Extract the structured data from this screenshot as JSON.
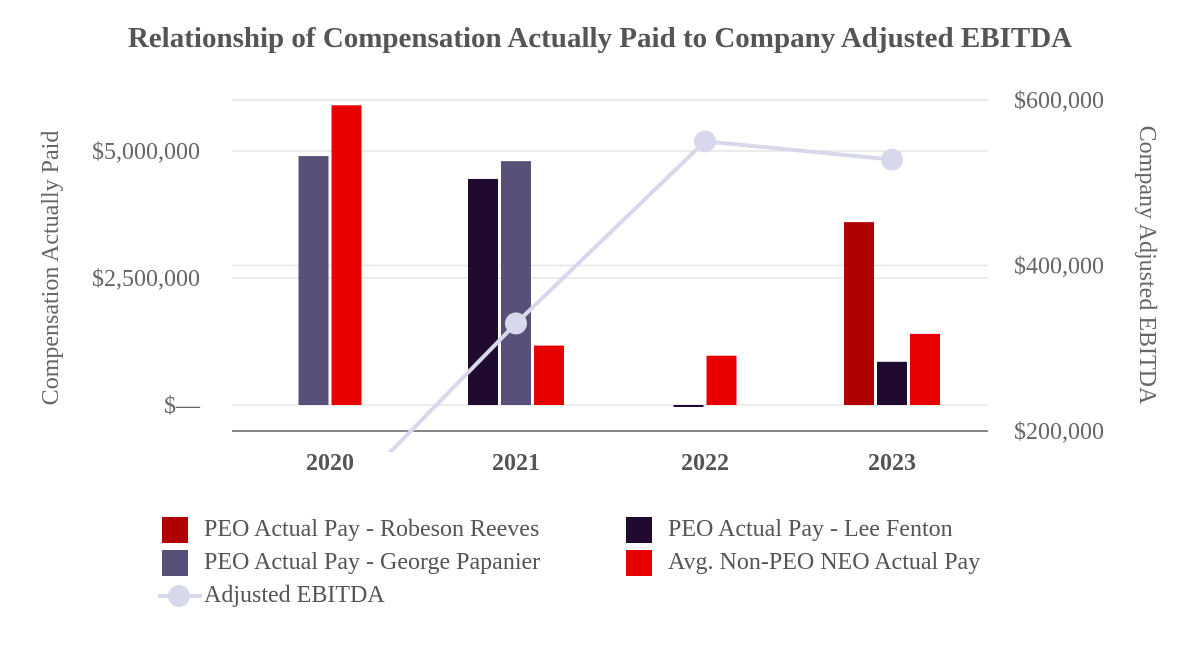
{
  "chart_data": {
    "type": "bar",
    "title": "Relationship of Compensation Actually Paid to Company Adjusted EBITDA",
    "categories": [
      "2020",
      "2021",
      "2022",
      "2023"
    ],
    "ylabel": "Compensation Actually Paid",
    "y2label": "Company Adjusted EBITDA",
    "ylim": [
      -500000,
      6000000
    ],
    "y2lim": [
      200000,
      600000
    ],
    "yticks": [
      0,
      2500000,
      5000000
    ],
    "yticklabels": [
      "$—",
      "$2,500,000",
      "$5,000,000"
    ],
    "y2ticks": [
      200000,
      400000,
      600000
    ],
    "y2ticklabels": [
      "$200,000",
      "$400,000",
      "$600,000"
    ],
    "grid": true,
    "legend_position": "bottom",
    "series": [
      {
        "name": "PEO Actual Pay - Robeson Reeves",
        "type": "bar",
        "axis": "left",
        "color": "#b00000",
        "values": [
          null,
          null,
          null,
          3600000
        ]
      },
      {
        "name": "PEO Actual Pay - Lee Fenton",
        "type": "bar",
        "axis": "left",
        "color": "#210a30",
        "values": [
          null,
          4450000,
          -30000,
          850000
        ]
      },
      {
        "name": "PEO Actual Pay - George Papanier",
        "type": "bar",
        "axis": "left",
        "color": "#585078",
        "values": [
          4900000,
          4800000,
          null,
          null
        ]
      },
      {
        "name": "Avg. Non-PEO NEO Actual Pay",
        "type": "bar",
        "axis": "left",
        "color": "#e80000",
        "values": [
          5900000,
          1170000,
          970000,
          1400000
        ]
      },
      {
        "name": "Adjusted EBITDA",
        "type": "line",
        "axis": "right",
        "color": "#d8d8ec",
        "values": [
          100000,
          330000,
          550000,
          528000
        ]
      }
    ]
  }
}
